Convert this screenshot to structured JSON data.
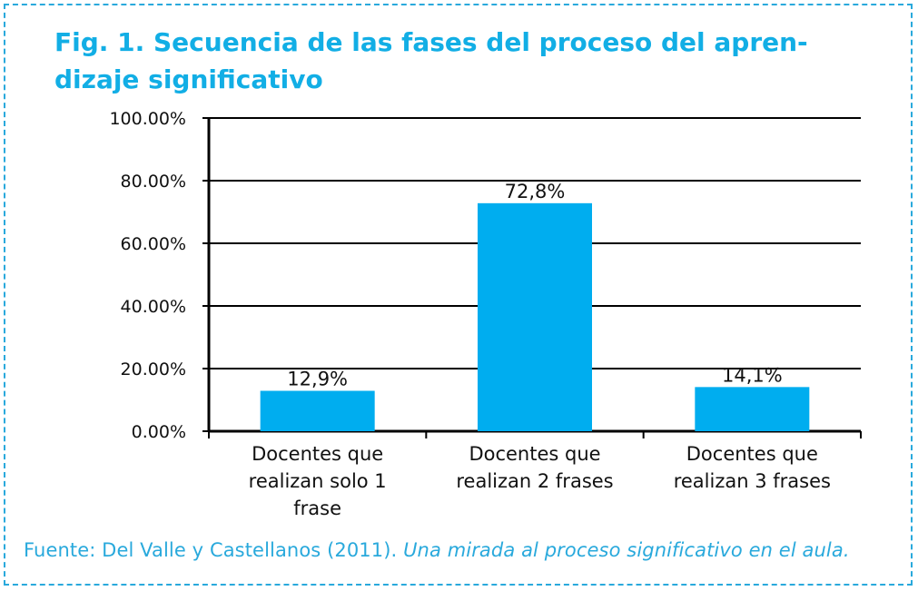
{
  "title": {
    "line1": "Fig. 1. Secuencia de las fases del proceso del apren-",
    "line2": "dizaje significativo"
  },
  "source": {
    "prefix": "Fuente: Del Valle y Castellanos (2011). ",
    "work": "Una mirada al proceso significativo en el aula."
  },
  "colors": {
    "bar": "#00adef",
    "title": "#12aee5",
    "source": "#29a9dc",
    "axis": "#000000"
  },
  "chart_data": {
    "type": "bar",
    "categories": [
      [
        "Docentes que",
        "realizan solo  1",
        "frase"
      ],
      [
        "Docentes que",
        "realizan 2 frases"
      ],
      [
        "Docentes que",
        "realizan 3 frases"
      ]
    ],
    "values": [
      12.9,
      72.8,
      14.1
    ],
    "data_labels": [
      "12,9%",
      "72,8%",
      "14,1%"
    ],
    "yticks": [
      0,
      20,
      40,
      60,
      80,
      100
    ],
    "ytick_labels": [
      "0.00%",
      "20.00%",
      "40.00%",
      "60.00%",
      "80.00%",
      "100.00%"
    ],
    "ylim": [
      0,
      100
    ],
    "grid": true,
    "legend": "none"
  }
}
